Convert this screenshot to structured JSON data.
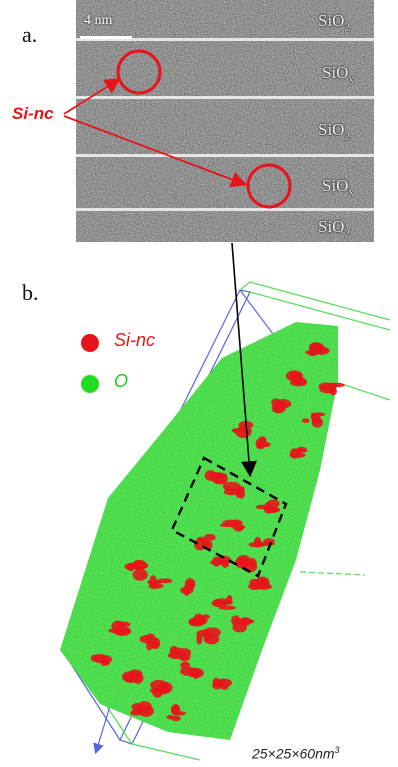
{
  "panel_a": {
    "label": "a.",
    "scale_bar": "4 nm",
    "layers": [
      {
        "base": "SiO",
        "sub": "2"
      },
      {
        "base": "SiO",
        "sub": "x"
      },
      {
        "base": "SiO",
        "sub": "2"
      },
      {
        "base": "SiO",
        "sub": "x"
      },
      {
        "base": "SiO",
        "sub": "2"
      }
    ],
    "callout": "Si-nc"
  },
  "panel_b": {
    "label": "b.",
    "legend": [
      {
        "label": "Si-nc",
        "color": "#e8141b"
      },
      {
        "label": "O",
        "color": "#22dd22"
      }
    ],
    "dimensions": {
      "text": "25×25×60nm",
      "exp": "3"
    }
  },
  "colors": {
    "tem_bg": "#6e6e6e",
    "separator": "#e6e6e6",
    "annotation_red": "#e8141b",
    "oxygen_green": "#36e336",
    "box_blue": "#5566dd",
    "box_green": "#55dd55"
  }
}
